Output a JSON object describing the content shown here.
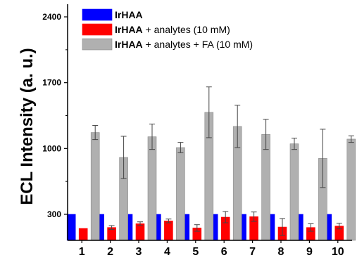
{
  "chart_data": {
    "type": "bar",
    "ylabel": "ECL Intensity (a. u.)",
    "xlabel": "",
    "ylim": [
      0,
      2500
    ],
    "yticks": [
      300,
      1000,
      1700,
      2400
    ],
    "categories": [
      "1",
      "2",
      "3",
      "4",
      "5",
      "6",
      "7",
      "8",
      "9",
      "10"
    ],
    "legend_position": "top-left",
    "series": [
      {
        "name": "IrHAA",
        "bold_prefix": "IrHAA",
        "suffix": "",
        "color": "#0000ff",
        "values": [
          300,
          300,
          300,
          300,
          300,
          300,
          300,
          300,
          300,
          300
        ],
        "errors": [
          0,
          0,
          0,
          0,
          0,
          0,
          0,
          0,
          0,
          0
        ]
      },
      {
        "name": "IrHAA + analytes (10 mM)",
        "bold_prefix": "IrHAA",
        "suffix": " + analytes (10 mM)",
        "color": "#ff0000",
        "values": [
          150,
          160,
          200,
          230,
          155,
          270,
          275,
          165,
          160,
          175
        ],
        "errors": [
          0,
          20,
          20,
          20,
          35,
          60,
          50,
          90,
          40,
          30
        ]
      },
      {
        "name": "IrHAA + analytes + FA (10 mM)",
        "bold_prefix": "IrHAA",
        "suffix": " + analytes + FA (10 mM)",
        "color": "#b0b0b0",
        "values": [
          1170,
          905,
          1125,
          1010,
          1385,
          1235,
          1150,
          1050,
          895,
          1100
        ],
        "errors": [
          75,
          225,
          135,
          55,
          270,
          225,
          160,
          60,
          310,
          35
        ]
      }
    ]
  }
}
